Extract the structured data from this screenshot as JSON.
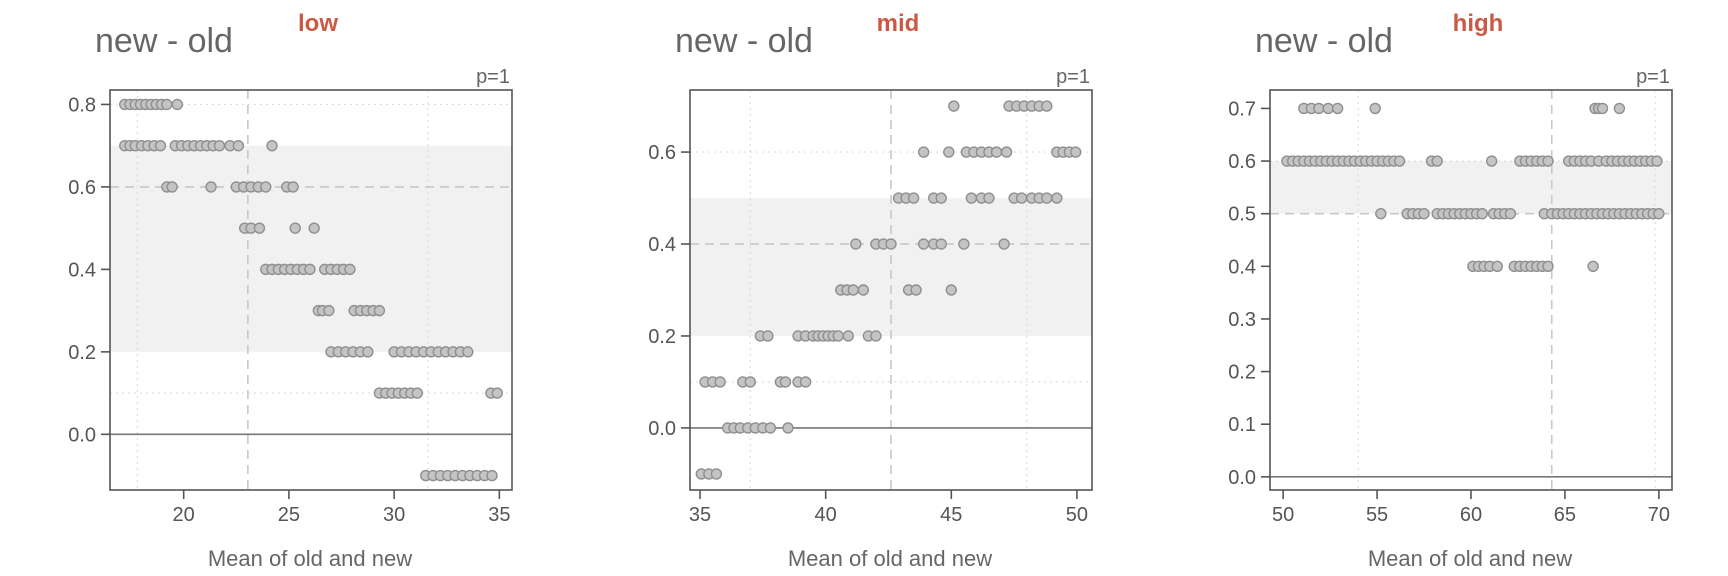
{
  "chart_data": [
    {
      "type": "scatter",
      "panel": "low",
      "ylabel": "new - old",
      "xlabel": "Mean of old and new",
      "annotation": "p=1",
      "xlim": [
        16.5,
        35.6
      ],
      "ylim": [
        -0.135,
        0.835
      ],
      "xticks": [
        20,
        25,
        30,
        35
      ],
      "yticks": [
        0.0,
        0.2,
        0.4,
        0.6,
        0.8
      ],
      "band": [
        0.2,
        0.7
      ],
      "mean_line": 0.6,
      "x_mean_line": 23.05,
      "hlines_dotted": [
        0.1,
        0.8
      ],
      "vlines_dotted": [
        17.8,
        31.6
      ],
      "points": [
        [
          17.2,
          0.8
        ],
        [
          17.45,
          0.8
        ],
        [
          17.7,
          0.8
        ],
        [
          17.95,
          0.8
        ],
        [
          18.2,
          0.8
        ],
        [
          18.45,
          0.8
        ],
        [
          18.7,
          0.8
        ],
        [
          18.95,
          0.8
        ],
        [
          19.2,
          0.8
        ],
        [
          19.7,
          0.8
        ],
        [
          17.2,
          0.7
        ],
        [
          17.45,
          0.7
        ],
        [
          17.7,
          0.7
        ],
        [
          18.0,
          0.7
        ],
        [
          18.3,
          0.7
        ],
        [
          18.6,
          0.7
        ],
        [
          18.9,
          0.7
        ],
        [
          19.6,
          0.7
        ],
        [
          19.9,
          0.7
        ],
        [
          20.2,
          0.7
        ],
        [
          20.5,
          0.7
        ],
        [
          20.8,
          0.7
        ],
        [
          21.1,
          0.7
        ],
        [
          21.4,
          0.7
        ],
        [
          21.7,
          0.7
        ],
        [
          22.2,
          0.7
        ],
        [
          22.6,
          0.7
        ],
        [
          24.2,
          0.7
        ],
        [
          19.2,
          0.6
        ],
        [
          19.45,
          0.6
        ],
        [
          21.3,
          0.6
        ],
        [
          22.5,
          0.6
        ],
        [
          22.85,
          0.6
        ],
        [
          23.2,
          0.6
        ],
        [
          23.55,
          0.6
        ],
        [
          23.9,
          0.6
        ],
        [
          24.9,
          0.6
        ],
        [
          25.2,
          0.6
        ],
        [
          22.9,
          0.5
        ],
        [
          23.2,
          0.5
        ],
        [
          23.6,
          0.5
        ],
        [
          25.3,
          0.5
        ],
        [
          26.2,
          0.5
        ],
        [
          23.9,
          0.4
        ],
        [
          24.2,
          0.4
        ],
        [
          24.5,
          0.4
        ],
        [
          24.8,
          0.4
        ],
        [
          25.1,
          0.4
        ],
        [
          25.4,
          0.4
        ],
        [
          25.7,
          0.4
        ],
        [
          26.0,
          0.4
        ],
        [
          26.7,
          0.4
        ],
        [
          27.0,
          0.4
        ],
        [
          27.3,
          0.4
        ],
        [
          27.6,
          0.4
        ],
        [
          27.9,
          0.4
        ],
        [
          26.4,
          0.3
        ],
        [
          26.6,
          0.3
        ],
        [
          26.9,
          0.3
        ],
        [
          28.1,
          0.3
        ],
        [
          28.4,
          0.3
        ],
        [
          28.7,
          0.3
        ],
        [
          29.0,
          0.3
        ],
        [
          29.3,
          0.3
        ],
        [
          27.0,
          0.2
        ],
        [
          27.35,
          0.2
        ],
        [
          27.7,
          0.2
        ],
        [
          28.05,
          0.2
        ],
        [
          28.4,
          0.2
        ],
        [
          28.75,
          0.2
        ],
        [
          30.0,
          0.2
        ],
        [
          30.35,
          0.2
        ],
        [
          30.7,
          0.2
        ],
        [
          31.05,
          0.2
        ],
        [
          31.4,
          0.2
        ],
        [
          31.75,
          0.2
        ],
        [
          32.1,
          0.2
        ],
        [
          32.45,
          0.2
        ],
        [
          32.8,
          0.2
        ],
        [
          33.15,
          0.2
        ],
        [
          33.5,
          0.2
        ],
        [
          29.3,
          0.1
        ],
        [
          29.6,
          0.1
        ],
        [
          29.9,
          0.1
        ],
        [
          30.2,
          0.1
        ],
        [
          30.5,
          0.1
        ],
        [
          30.8,
          0.1
        ],
        [
          31.1,
          0.1
        ],
        [
          34.6,
          0.1
        ],
        [
          34.9,
          0.1
        ],
        [
          31.5,
          -0.1
        ],
        [
          31.85,
          -0.1
        ],
        [
          32.2,
          -0.1
        ],
        [
          32.55,
          -0.1
        ],
        [
          32.9,
          -0.1
        ],
        [
          33.25,
          -0.1
        ],
        [
          33.6,
          -0.1
        ],
        [
          33.95,
          -0.1
        ],
        [
          34.3,
          -0.1
        ],
        [
          34.65,
          -0.1
        ]
      ]
    },
    {
      "type": "scatter",
      "panel": "mid",
      "ylabel": "new - old",
      "xlabel": "Mean of old and new",
      "annotation": "p=1",
      "xlim": [
        34.6,
        50.6
      ],
      "ylim": [
        -0.135,
        0.735
      ],
      "xticks": [
        35,
        40,
        45,
        50
      ],
      "yticks": [
        0.0,
        0.2,
        0.4,
        0.6
      ],
      "band": [
        0.2,
        0.5
      ],
      "mean_line": 0.4,
      "x_mean_line": 42.6,
      "hlines_dotted": [
        0.1,
        0.6
      ],
      "vlines_dotted": [
        37.0,
        48.0
      ],
      "points": [
        [
          35.05,
          -0.1
        ],
        [
          35.35,
          -0.1
        ],
        [
          35.65,
          -0.1
        ],
        [
          35.2,
          0.1
        ],
        [
          35.5,
          0.1
        ],
        [
          35.8,
          0.1
        ],
        [
          36.7,
          0.1
        ],
        [
          37.0,
          0.1
        ],
        [
          38.2,
          0.1
        ],
        [
          38.4,
          0.1
        ],
        [
          38.9,
          0.1
        ],
        [
          39.2,
          0.1
        ],
        [
          36.1,
          0.0
        ],
        [
          36.35,
          0.0
        ],
        [
          36.6,
          0.0
        ],
        [
          36.9,
          0.0
        ],
        [
          37.2,
          0.0
        ],
        [
          37.5,
          0.0
        ],
        [
          37.8,
          0.0
        ],
        [
          38.5,
          0.0
        ],
        [
          37.4,
          0.2
        ],
        [
          37.7,
          0.2
        ],
        [
          38.9,
          0.2
        ],
        [
          39.2,
          0.2
        ],
        [
          39.5,
          0.2
        ],
        [
          39.7,
          0.2
        ],
        [
          39.9,
          0.2
        ],
        [
          40.1,
          0.2
        ],
        [
          40.3,
          0.2
        ],
        [
          40.5,
          0.2
        ],
        [
          40.9,
          0.2
        ],
        [
          41.7,
          0.2
        ],
        [
          42.0,
          0.2
        ],
        [
          40.6,
          0.3
        ],
        [
          40.85,
          0.3
        ],
        [
          41.1,
          0.3
        ],
        [
          41.5,
          0.3
        ],
        [
          43.3,
          0.3
        ],
        [
          43.6,
          0.3
        ],
        [
          45.0,
          0.3
        ],
        [
          41.2,
          0.4
        ],
        [
          42.0,
          0.4
        ],
        [
          42.3,
          0.4
        ],
        [
          42.6,
          0.4
        ],
        [
          43.9,
          0.4
        ],
        [
          44.3,
          0.4
        ],
        [
          44.6,
          0.4
        ],
        [
          45.5,
          0.4
        ],
        [
          47.1,
          0.4
        ],
        [
          42.9,
          0.5
        ],
        [
          43.2,
          0.5
        ],
        [
          43.5,
          0.5
        ],
        [
          44.3,
          0.5
        ],
        [
          44.6,
          0.5
        ],
        [
          45.8,
          0.5
        ],
        [
          46.2,
          0.5
        ],
        [
          46.5,
          0.5
        ],
        [
          47.5,
          0.5
        ],
        [
          47.8,
          0.5
        ],
        [
          48.2,
          0.5
        ],
        [
          48.5,
          0.5
        ],
        [
          48.8,
          0.5
        ],
        [
          49.2,
          0.5
        ],
        [
          43.9,
          0.6
        ],
        [
          44.9,
          0.6
        ],
        [
          45.6,
          0.6
        ],
        [
          45.9,
          0.6
        ],
        [
          46.2,
          0.6
        ],
        [
          46.5,
          0.6
        ],
        [
          46.8,
          0.6
        ],
        [
          47.2,
          0.6
        ],
        [
          49.2,
          0.6
        ],
        [
          49.45,
          0.6
        ],
        [
          49.7,
          0.6
        ],
        [
          49.95,
          0.6
        ],
        [
          45.1,
          0.7
        ],
        [
          47.3,
          0.7
        ],
        [
          47.6,
          0.7
        ],
        [
          47.9,
          0.7
        ],
        [
          48.2,
          0.7
        ],
        [
          48.5,
          0.7
        ],
        [
          48.8,
          0.7
        ]
      ]
    },
    {
      "type": "scatter",
      "panel": "high",
      "ylabel": "new - old",
      "xlabel": "Mean of old and new",
      "annotation": "p=1",
      "xlim": [
        49.3,
        70.7
      ],
      "ylim": [
        -0.025,
        0.735
      ],
      "xticks": [
        50,
        55,
        60,
        65,
        70
      ],
      "yticks": [
        0.0,
        0.1,
        0.2,
        0.3,
        0.4,
        0.5,
        0.6,
        0.7
      ],
      "band": [
        0.5,
        0.6
      ],
      "mean_line": 0.5,
      "x_mean_line": 64.3,
      "hlines_dotted": [
        0.6
      ],
      "vlines_dotted": [
        54.0,
        69.8
      ],
      "points": [
        [
          51.1,
          0.7
        ],
        [
          51.5,
          0.7
        ],
        [
          51.9,
          0.7
        ],
        [
          52.4,
          0.7
        ],
        [
          52.9,
          0.7
        ],
        [
          54.9,
          0.7
        ],
        [
          66.6,
          0.7
        ],
        [
          66.8,
          0.7
        ],
        [
          67.0,
          0.7
        ],
        [
          67.9,
          0.7
        ],
        [
          50.2,
          0.6
        ],
        [
          50.5,
          0.6
        ],
        [
          50.8,
          0.6
        ],
        [
          51.1,
          0.6
        ],
        [
          51.4,
          0.6
        ],
        [
          51.7,
          0.6
        ],
        [
          52.0,
          0.6
        ],
        [
          52.3,
          0.6
        ],
        [
          52.6,
          0.6
        ],
        [
          52.9,
          0.6
        ],
        [
          53.2,
          0.6
        ],
        [
          53.5,
          0.6
        ],
        [
          53.8,
          0.6
        ],
        [
          54.1,
          0.6
        ],
        [
          54.4,
          0.6
        ],
        [
          54.7,
          0.6
        ],
        [
          55.0,
          0.6
        ],
        [
          55.3,
          0.6
        ],
        [
          55.6,
          0.6
        ],
        [
          55.9,
          0.6
        ],
        [
          56.2,
          0.6
        ],
        [
          57.9,
          0.6
        ],
        [
          58.2,
          0.6
        ],
        [
          61.1,
          0.6
        ],
        [
          62.6,
          0.6
        ],
        [
          62.9,
          0.6
        ],
        [
          63.2,
          0.6
        ],
        [
          63.5,
          0.6
        ],
        [
          63.8,
          0.6
        ],
        [
          64.1,
          0.6
        ],
        [
          65.2,
          0.6
        ],
        [
          65.5,
          0.6
        ],
        [
          65.8,
          0.6
        ],
        [
          66.1,
          0.6
        ],
        [
          66.4,
          0.6
        ],
        [
          66.8,
          0.6
        ],
        [
          67.2,
          0.6
        ],
        [
          67.5,
          0.6
        ],
        [
          67.8,
          0.6
        ],
        [
          68.1,
          0.6
        ],
        [
          68.4,
          0.6
        ],
        [
          68.7,
          0.6
        ],
        [
          69.0,
          0.6
        ],
        [
          69.3,
          0.6
        ],
        [
          69.6,
          0.6
        ],
        [
          69.9,
          0.6
        ],
        [
          55.2,
          0.5
        ],
        [
          56.6,
          0.5
        ],
        [
          56.9,
          0.5
        ],
        [
          57.2,
          0.5
        ],
        [
          57.5,
          0.5
        ],
        [
          58.2,
          0.5
        ],
        [
          58.5,
          0.5
        ],
        [
          58.8,
          0.5
        ],
        [
          59.1,
          0.5
        ],
        [
          59.4,
          0.5
        ],
        [
          59.7,
          0.5
        ],
        [
          60.0,
          0.5
        ],
        [
          60.3,
          0.5
        ],
        [
          60.6,
          0.5
        ],
        [
          61.2,
          0.5
        ],
        [
          61.5,
          0.5
        ],
        [
          61.8,
          0.5
        ],
        [
          62.1,
          0.5
        ],
        [
          63.9,
          0.5
        ],
        [
          64.3,
          0.5
        ],
        [
          64.6,
          0.5
        ],
        [
          64.9,
          0.5
        ],
        [
          65.2,
          0.5
        ],
        [
          65.5,
          0.5
        ],
        [
          65.8,
          0.5
        ],
        [
          66.1,
          0.5
        ],
        [
          66.4,
          0.5
        ],
        [
          66.7,
          0.5
        ],
        [
          67.0,
          0.5
        ],
        [
          67.3,
          0.5
        ],
        [
          67.6,
          0.5
        ],
        [
          67.9,
          0.5
        ],
        [
          68.2,
          0.5
        ],
        [
          68.5,
          0.5
        ],
        [
          68.8,
          0.5
        ],
        [
          69.1,
          0.5
        ],
        [
          69.4,
          0.5
        ],
        [
          69.7,
          0.5
        ],
        [
          70.0,
          0.5
        ],
        [
          60.1,
          0.4
        ],
        [
          60.4,
          0.4
        ],
        [
          60.7,
          0.4
        ],
        [
          61.0,
          0.4
        ],
        [
          61.4,
          0.4
        ],
        [
          62.3,
          0.4
        ],
        [
          62.6,
          0.4
        ],
        [
          62.9,
          0.4
        ],
        [
          63.2,
          0.4
        ],
        [
          63.5,
          0.4
        ],
        [
          63.8,
          0.4
        ],
        [
          64.1,
          0.4
        ],
        [
          66.5,
          0.4
        ]
      ]
    }
  ]
}
